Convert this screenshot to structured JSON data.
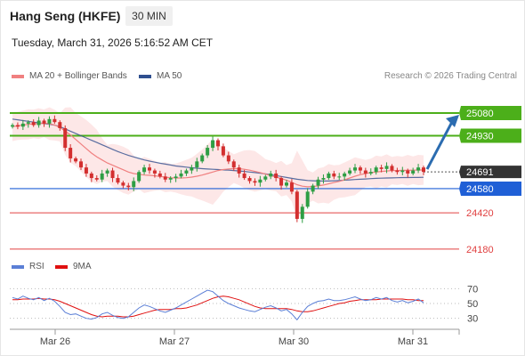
{
  "header": {
    "title": "Hang Seng (HKFE)",
    "timeframe": "30 MIN",
    "datetime": "Tuesday, March 31, 2026 5:16:52 AM CET",
    "copyright": "Research © 2026 Trading Central"
  },
  "legend": {
    "ma20_label": "MA 20 + Bollinger Bands",
    "ma50_label": "MA 50",
    "rsi_label": "RSI",
    "ma9_label": "9MA"
  },
  "colors": {
    "up_candle": "#2e9e44",
    "down_candle": "#d32f2f",
    "ma20": "#f08080",
    "ma50": "#2f4f8f",
    "bollinger_fill": "#fde3e3",
    "resistance": "#4caf1a",
    "pivot": "#1f5fd6",
    "support": "#e04040",
    "current": "#333333",
    "rsi": "#5b7fd6",
    "rsi_ma": "#e01010",
    "arrow": "#2b6cb0"
  },
  "chart_data": [
    {
      "type": "candlestick",
      "x_labels": [
        "Mar 26",
        "Mar 27",
        "Mar 30",
        "Mar 31"
      ],
      "y_range": [
        24150,
        25180
      ],
      "current_price": 24691,
      "levels": [
        {
          "value": 25080,
          "label": "25080",
          "kind": "resistance"
        },
        {
          "value": 24930,
          "label": "24930",
          "kind": "resistance"
        },
        {
          "value": 24580,
          "label": "24580",
          "kind": "pivot"
        },
        {
          "value": 24420,
          "label": "24420",
          "kind": "support"
        },
        {
          "value": 24180,
          "label": "24180",
          "kind": "support"
        }
      ],
      "current_label": "24691",
      "forecast_target": 25080,
      "closes": [
        25000,
        24990,
        25010,
        25020,
        25000,
        25030,
        25010,
        25040,
        25020,
        24980,
        24850,
        24780,
        24760,
        24720,
        24680,
        24650,
        24640,
        24680,
        24700,
        24650,
        24620,
        24600,
        24590,
        24630,
        24690,
        24720,
        24700,
        24680,
        24660,
        24640,
        24650,
        24660,
        24680,
        24700,
        24720,
        24760,
        24800,
        24850,
        24900,
        24860,
        24800,
        24760,
        24720,
        24680,
        24650,
        24630,
        24620,
        24640,
        24660,
        24680,
        24650,
        24600,
        24620,
        24560,
        24380,
        24460,
        24560,
        24600,
        24640,
        24650,
        24680,
        24660,
        24660,
        24680,
        24700,
        24720,
        24700,
        24680,
        24690,
        24720,
        24710,
        24730,
        24700,
        24690,
        24700,
        24680,
        24700,
        24720,
        24691
      ],
      "ma20": [
        24990,
        24995,
        25000,
        25005,
        25008,
        25010,
        25012,
        25010,
        25000,
        24985,
        24960,
        24935,
        24905,
        24875,
        24845,
        24815,
        24790,
        24770,
        24750,
        24735,
        24720,
        24705,
        24690,
        24680,
        24675,
        24670,
        24668,
        24665,
        24660,
        24656,
        24652,
        24650,
        24650,
        24652,
        24656,
        24662,
        24670,
        24680,
        24690,
        24700,
        24706,
        24710,
        24712,
        24712,
        24708,
        24702,
        24694,
        24686,
        24676,
        24666,
        24656,
        24646,
        24636,
        24622,
        24606,
        24596,
        24592,
        24594,
        24598,
        24604,
        24612,
        24620,
        24628,
        24638,
        24650,
        24662,
        24672,
        24680,
        24686,
        24690,
        24694,
        24697,
        24699,
        24700,
        24701,
        24701,
        24702,
        24703,
        24703
      ],
      "ma50": [
        25040,
        25035,
        25030,
        25025,
        25020,
        25015,
        25010,
        25005,
        25000,
        24990,
        24975,
        24960,
        24945,
        24930,
        24915,
        24900,
        24885,
        24870,
        24855,
        24840,
        24825,
        24812,
        24800,
        24790,
        24780,
        24770,
        24762,
        24755,
        24748,
        24742,
        24736,
        24730,
        24726,
        24722,
        24718,
        24715,
        24712,
        24710,
        24708,
        24706,
        24704,
        24702,
        24700,
        24697,
        24694,
        24690,
        24686,
        24682,
        24678,
        24672,
        24666,
        24660,
        24654,
        24648,
        24642,
        24638,
        24634,
        24632,
        24630,
        24630,
        24630,
        24632,
        24634,
        24636,
        24638,
        24640,
        24642,
        24644,
        24646,
        24648,
        24649,
        24650,
        24651,
        24652,
        24653,
        24653,
        24654,
        24654,
        24655
      ]
    },
    {
      "type": "line",
      "name": "RSI",
      "y_range": [
        20,
        80
      ],
      "y_ticks": [
        70,
        50,
        30
      ],
      "rsi": [
        58,
        56,
        60,
        57,
        55,
        58,
        54,
        57,
        53,
        46,
        38,
        35,
        36,
        33,
        30,
        29,
        31,
        36,
        38,
        34,
        31,
        30,
        32,
        38,
        44,
        48,
        46,
        43,
        40,
        38,
        41,
        44,
        48,
        52,
        56,
        60,
        64,
        68,
        66,
        60,
        54,
        50,
        47,
        44,
        42,
        40,
        39,
        42,
        45,
        47,
        44,
        40,
        42,
        36,
        28,
        38,
        46,
        50,
        53,
        54,
        56,
        54,
        54,
        55,
        57,
        59,
        56,
        54,
        55,
        58,
        56,
        58,
        54,
        52,
        54,
        51,
        53,
        56,
        51
      ],
      "rsi_ma": [
        55,
        55,
        56,
        56,
        56,
        57,
        56,
        56,
        55,
        53,
        50,
        47,
        44,
        41,
        38,
        35,
        33,
        32,
        33,
        33,
        33,
        32,
        32,
        33,
        35,
        37,
        39,
        41,
        42,
        42,
        42,
        43,
        43,
        44,
        46,
        48,
        51,
        54,
        57,
        59,
        60,
        59,
        57,
        55,
        52,
        49,
        46,
        44,
        43,
        43,
        43,
        43,
        43,
        42,
        40,
        39,
        39,
        40,
        42,
        44,
        46,
        48,
        50,
        51,
        53,
        54,
        55,
        55,
        55,
        55,
        56,
        56,
        56,
        56,
        56,
        55,
        55,
        54,
        54
      ]
    }
  ]
}
